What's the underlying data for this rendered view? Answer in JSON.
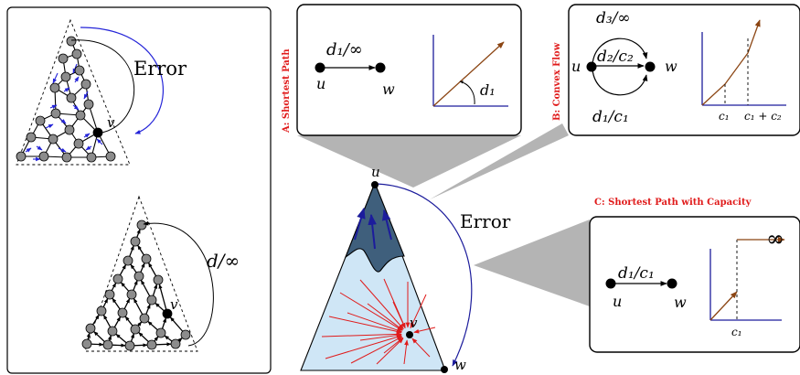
{
  "colors": {
    "red": "#e01b1b",
    "blue": "#1c1c9c",
    "brown": "#8b4513",
    "mountain_light": "#cfe6f6",
    "mountain_dark": "#3f5f7c",
    "node_gray": "#8c8c8c",
    "callout_gray": "#b4b4b4",
    "arrow_blue": "#2424d8"
  },
  "left_panel": {
    "top_graph": {
      "error_label": "Error",
      "node_label": "v"
    },
    "bottom_graph": {
      "edge_label": "d/∞",
      "node_label": "v"
    }
  },
  "mountain": {
    "error_label": "Error",
    "node_u": "u",
    "node_v": "v",
    "node_w": "w"
  },
  "panel_a": {
    "title": "A: Shortest Path",
    "edge_label": "d₁/∞",
    "node_u": "u",
    "node_w": "w",
    "slope_label": "d₁"
  },
  "panel_b": {
    "title": "B: Convex Flow",
    "edge_top": "d₃/∞",
    "edge_mid": "d₂/c₂",
    "edge_bottom": "d₁/c₁",
    "node_u": "u",
    "node_w": "w",
    "tick_1": "c₁",
    "tick_2": "c₁ + c₂"
  },
  "panel_c": {
    "title": "C: Shortest Path with Capacity",
    "edge_label": "d₁/c₁",
    "node_u": "u",
    "node_w": "w",
    "infinity_label": "∞",
    "tick_1": "c₁"
  }
}
